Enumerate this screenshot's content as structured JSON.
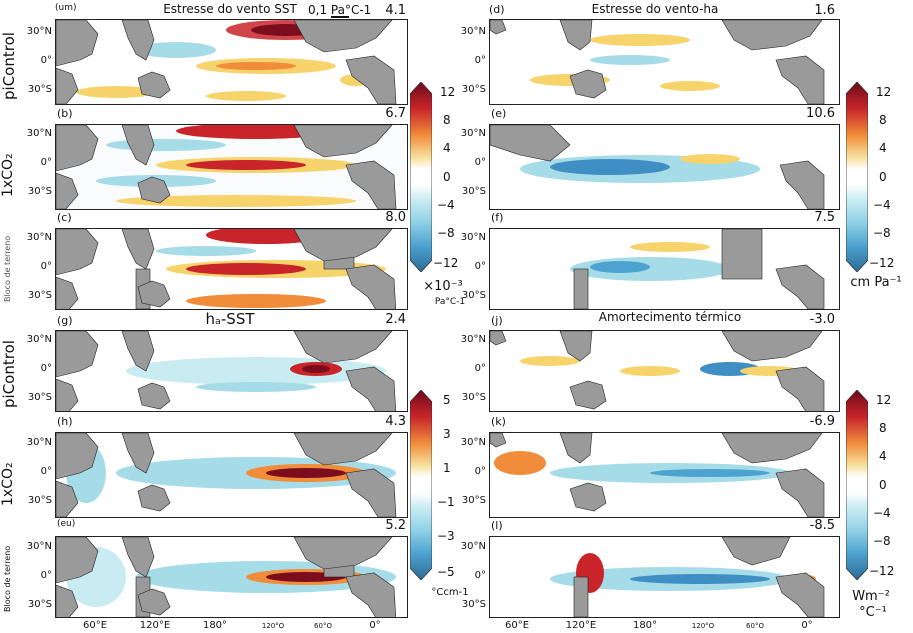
{
  "panels": [
    {
      "id": "a",
      "label": "(um)",
      "title": "Estresse do vento SST",
      "value": "4.1",
      "scale_label": "0,1 Pa°C-1"
    },
    {
      "id": "b",
      "label": "(b)",
      "title": "",
      "value": "6.7"
    },
    {
      "id": "c",
      "label": "(c)",
      "title": "",
      "value": "8.0"
    },
    {
      "id": "d",
      "label": "(d)",
      "title": "Estresse do vento-ha",
      "value": "1.6"
    },
    {
      "id": "e",
      "label": "(e)",
      "title": "",
      "value": "10.6"
    },
    {
      "id": "f",
      "label": "(f)",
      "title": "",
      "value": "7.5"
    },
    {
      "id": "g",
      "label": "(g)",
      "title": "hₐ-SST",
      "value": "2.4"
    },
    {
      "id": "h",
      "label": "(h)",
      "title": "",
      "value": "4.3"
    },
    {
      "id": "i",
      "label": "(eu)",
      "title": "",
      "value": "5.2"
    },
    {
      "id": "j",
      "label": "(j)",
      "title": "Amortecimento térmico",
      "value": "-3.0"
    },
    {
      "id": "k",
      "label": "(k)",
      "title": "",
      "value": "-6.9"
    },
    {
      "id": "l",
      "label": "(l)",
      "title": "",
      "value": "-8.5"
    }
  ],
  "row_labels": {
    "picontrol": "piControl",
    "co2": "1xCO₂",
    "terrain": "Bloco de terreno"
  },
  "lat_labels": [
    "30°N",
    "0°",
    "30°S"
  ],
  "lon_labels_left": [
    "60°E",
    "120°E",
    "180°",
    "120°O",
    "60°O",
    "0°"
  ],
  "lon_labels_right": [
    "60°E",
    "120°E",
    "180°",
    "120°O",
    "60°O",
    "0°"
  ],
  "colorbars": {
    "wind_sst": {
      "ticks": [
        "12",
        "8",
        "4",
        "0",
        "−4",
        "−8",
        "−12"
      ],
      "unit_top": "×10⁻³",
      "unit_bottom": "Pa°C-1",
      "range": [
        -12,
        12
      ]
    },
    "wind_ha": {
      "ticks": [
        "12",
        "8",
        "4",
        "0",
        "−4",
        "−8",
        "−12"
      ],
      "unit": "cm Pa⁻¹",
      "range": [
        -12,
        12
      ]
    },
    "ha_sst": {
      "ticks": [
        "5",
        "3",
        "1",
        "−1",
        "−3",
        "−5"
      ],
      "unit": "°Ccm-1",
      "range": [
        -5,
        5
      ]
    },
    "thermal": {
      "ticks": [
        "12",
        "8",
        "4",
        "0",
        "−4",
        "−8",
        "−12"
      ],
      "unit_top": "Wm⁻²",
      "unit_bottom": "°C⁻¹",
      "range": [
        -12,
        12
      ]
    }
  },
  "colors": {
    "land": "#9a9a9a",
    "dark_red": "#7b0d1e",
    "red": "#d7301f",
    "orange": "#f08c3a",
    "yellow": "#f6d36b",
    "light_blue": "#a6dbe8",
    "blue": "#3f8fc4",
    "dark_blue": "#2c5d8f"
  }
}
